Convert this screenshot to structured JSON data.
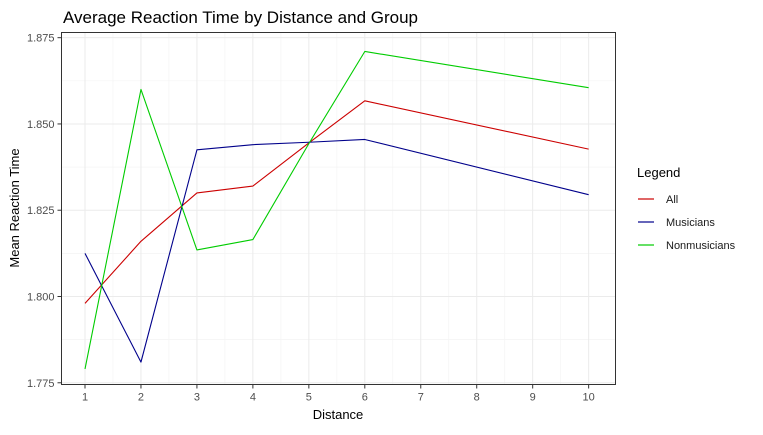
{
  "chart_data": {
    "type": "line",
    "title": "Average Reaction Time by Distance and Group",
    "xlabel": "Distance",
    "ylabel": "Mean Reaction Time",
    "x": [
      1,
      2,
      3,
      4,
      5,
      6,
      10
    ],
    "x_ticks": [
      "1",
      "2",
      "3",
      "4",
      "5",
      "6",
      "7",
      "8",
      "9",
      "10"
    ],
    "y_ticks": [
      "1.775",
      "1.800",
      "1.825",
      "1.850",
      "1.875"
    ],
    "xlim": [
      0.58,
      10.48
    ],
    "ylim": [
      1.7745,
      1.8765
    ],
    "grid": true,
    "legend": {
      "title": "Legend",
      "position": "right"
    },
    "series": [
      {
        "name": "All",
        "color": "#cc0000",
        "values": [
          1.798,
          1.816,
          1.83,
          1.832,
          1.8445,
          1.8567,
          1.8427
        ]
      },
      {
        "name": "Musicians",
        "color": "#00008b",
        "values": [
          1.8125,
          1.781,
          1.8425,
          1.844,
          1.8447,
          1.8455,
          1.8295
        ]
      },
      {
        "name": "Nonmusicians",
        "color": "#00cc00",
        "values": [
          1.779,
          1.86,
          1.8135,
          1.8165,
          1.8443,
          1.871,
          1.8605
        ]
      }
    ]
  }
}
